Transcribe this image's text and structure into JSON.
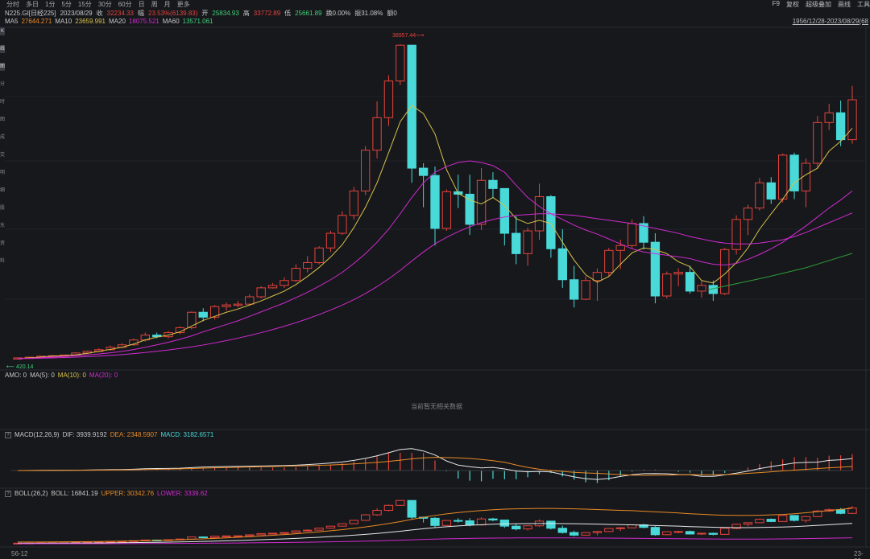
{
  "toolbar": {
    "periods": [
      "分时",
      "多日",
      "1分",
      "5分",
      "15分",
      "30分",
      "60分",
      "日",
      "周",
      "月",
      "更多"
    ],
    "right": [
      "F9",
      "复权",
      "超级叠加",
      "画线",
      "工具"
    ]
  },
  "quote": {
    "symbol": "N225.GI[日经225]",
    "date": "2023/08/29",
    "close_label": "收",
    "close": "32234.33",
    "change_label": "幅",
    "change": "23.53%(6139.83)",
    "open_label": "开",
    "open": "25834.93",
    "high_label": "高",
    "high": "33772.89",
    "low_label": "低",
    "low": "25661.89",
    "turnover": "换0.00%",
    "amplitude": "振31.08%",
    "amount": "额0"
  },
  "ma": {
    "ma5_label": "MA5",
    "ma5": "27644.271",
    "ma10_label": "MA10",
    "ma10": "23659.991",
    "ma20_label": "MA20",
    "ma20": "18075.521",
    "ma60_label": "MA60",
    "ma60": "13571.061"
  },
  "range_text": "1956/12/28-2023/08/29(68",
  "left_tabs": [
    "K",
    "线",
    "图",
    "分",
    "时",
    "图",
    "成",
    "交",
    "明",
    "细",
    "股",
    "东",
    "资",
    "料"
  ],
  "peak_label": "38957.44",
  "low_label": "420.14",
  "amo": {
    "label": "AMO: 0",
    "ma5": "MA(5): 0",
    "ma10": "MA(10): 0",
    "ma20": "MA(20): 0",
    "nodata": "当前暂无相关数据"
  },
  "macd": {
    "q": "?",
    "label": "MACD(12,26,9)",
    "dif": "DIF: 3939.9192",
    "dea": "DEA: 2348.5907",
    "macd": "MACD: 3182.6571"
  },
  "boll": {
    "q": "?",
    "label": "BOLL(26,2)",
    "boll": "BOLL: 16841.19",
    "upper": "UPPER: 30342.76",
    "lower": "LOWER: 3339.62"
  },
  "xaxis": {
    "start": "56-12",
    "end": "23-08"
  },
  "colors": {
    "up": "#e5433b",
    "down": "#49d9d9",
    "ma5": "#c8c8c8",
    "ma10": "#d8c24a",
    "ma20": "#d02ad0",
    "ma60": "#2e9a3a",
    "dea": "#e98a24",
    "bg": "#17181c"
  },
  "chart_data": {
    "type": "candlestick",
    "candles": [
      [
        420,
        520,
        500,
        380
      ],
      [
        500,
        600,
        580,
        470
      ],
      [
        580,
        720,
        700,
        560
      ],
      [
        700,
        860,
        760,
        660
      ],
      [
        760,
        900,
        850,
        700
      ],
      [
        850,
        1200,
        1100,
        800
      ],
      [
        1100,
        1400,
        1300,
        1000
      ],
      [
        1300,
        1700,
        1500,
        1200
      ],
      [
        1500,
        2000,
        1800,
        1400
      ],
      [
        1800,
        2300,
        2100,
        1700
      ],
      [
        2100,
        2900,
        2700,
        2000
      ],
      [
        2700,
        3600,
        3300,
        2500
      ],
      [
        3300,
        3600,
        3100,
        2900
      ],
      [
        3100,
        3800,
        3600,
        2900
      ],
      [
        3600,
        4400,
        4200,
        3400
      ],
      [
        4200,
        6200,
        6100,
        4000
      ],
      [
        6100,
        6600,
        5500,
        5000
      ],
      [
        5500,
        7000,
        6800,
        5200
      ],
      [
        6800,
        7300,
        7000,
        6300
      ],
      [
        7000,
        7500,
        7100,
        6700
      ],
      [
        7100,
        8300,
        8000,
        6900
      ],
      [
        8000,
        9300,
        9100,
        7800
      ],
      [
        9100,
        9700,
        9400,
        9000
      ],
      [
        9400,
        10400,
        10000,
        9100
      ],
      [
        10000,
        12000,
        11500,
        9800
      ],
      [
        11500,
        13000,
        12200,
        11000
      ],
      [
        12200,
        14200,
        14000,
        12000
      ],
      [
        14000,
        16100,
        15800,
        13500
      ],
      [
        15800,
        18500,
        18000,
        15600
      ],
      [
        18000,
        21500,
        21000,
        17500
      ],
      [
        21000,
        26500,
        26000,
        20500
      ],
      [
        26000,
        32000,
        30000,
        25000
      ],
      [
        30000,
        35200,
        34500,
        29000
      ],
      [
        34500,
        39000,
        38900,
        34000
      ],
      [
        38900,
        38957,
        23800,
        22000
      ],
      [
        23800,
        24400,
        22900,
        19000
      ],
      [
        22900,
        24000,
        16400,
        14300
      ],
      [
        16400,
        21200,
        20900,
        16100
      ],
      [
        20900,
        23000,
        20600,
        18900
      ],
      [
        20600,
        23000,
        16900,
        15600
      ],
      [
        16900,
        23800,
        22300,
        16200
      ],
      [
        22300,
        23300,
        21300,
        20100
      ],
      [
        21300,
        20600,
        15800,
        14300
      ],
      [
        15800,
        17900,
        13300,
        12000
      ],
      [
        13300,
        16500,
        16100,
        11800
      ],
      [
        16100,
        21900,
        20300,
        15000
      ],
      [
        20300,
        20500,
        13900,
        12800
      ],
      [
        13900,
        16300,
        10100,
        9100
      ],
      [
        10100,
        11800,
        7700,
        6700
      ],
      [
        7700,
        10500,
        10000,
        7600
      ],
      [
        10000,
        11500,
        11000,
        7500
      ],
      [
        11000,
        14000,
        13700,
        10500
      ],
      [
        13700,
        15000,
        14300,
        11400
      ],
      [
        14300,
        17500,
        17000,
        14000
      ],
      [
        17000,
        17900,
        14700,
        13800
      ],
      [
        14700,
        15800,
        8100,
        7200
      ],
      [
        8100,
        11100,
        10800,
        7800
      ],
      [
        10800,
        11500,
        11000,
        9300
      ],
      [
        11000,
        11800,
        8700,
        8400
      ],
      [
        8700,
        9900,
        9400,
        7900
      ],
      [
        9400,
        10000,
        8400,
        7500
      ],
      [
        8400,
        14000,
        13800,
        8200
      ],
      [
        13800,
        18000,
        17500,
        13200
      ],
      [
        17500,
        19300,
        18900,
        15600
      ],
      [
        18900,
        22600,
        22000,
        18600
      ],
      [
        22000,
        22700,
        20000,
        19400
      ],
      [
        20000,
        25600,
        25400,
        19600
      ],
      [
        25400,
        25700,
        21000,
        20000
      ],
      [
        21000,
        25000,
        24400,
        19000
      ],
      [
        24400,
        30200,
        29400,
        23800
      ],
      [
        29400,
        31700,
        30600,
        28500
      ],
      [
        30600,
        32100,
        27300,
        26500
      ],
      [
        27300,
        33900,
        32200,
        26800
      ]
    ],
    "ma5": [
      420,
      500,
      600,
      720,
      760,
      880,
      1050,
      1300,
      1550,
      1800,
      2200,
      2700,
      3050,
      3300,
      3700,
      4400,
      5100,
      5600,
      6100,
      6500,
      7000,
      7500,
      8100,
      8700,
      9500,
      10500,
      11600,
      12900,
      14400,
      16500,
      19000,
      22000,
      25700,
      29500,
      31500,
      30500,
      28000,
      23600,
      20700,
      19900,
      19400,
      20200,
      19200,
      17600,
      17000,
      17400,
      17000,
      14700,
      12500,
      10700,
      9800,
      10500,
      12000,
      13400,
      14000,
      13800,
      13300,
      12300,
      11700,
      10000,
      9700,
      10800,
      12200,
      14000,
      16300,
      18200,
      20000,
      22000,
      23000,
      23800,
      25900,
      27100,
      28700
    ],
    "ma10": [
      420,
      450,
      520,
      600,
      680,
      760,
      860,
      980,
      1120,
      1300,
      1520,
      1800,
      2100,
      2420,
      2780,
      3200,
      3700,
      4150,
      4600,
      5050,
      5600,
      6150,
      6700,
      7250,
      7900,
      8550,
      9300,
      10100,
      11000,
      12100,
      13300,
      14700,
      16300,
      18200,
      20200,
      22000,
      23300,
      24000,
      24500,
      24700,
      24500,
      24100,
      23300,
      21700,
      20200,
      19100,
      18200,
      17500,
      16800,
      16200,
      15700,
      15100,
      14500,
      13900,
      13500,
      13300,
      13100,
      12900,
      12700,
      12300,
      12000,
      11900,
      12100,
      12600,
      13200,
      13900,
      14700,
      15700,
      16700,
      17800,
      18900,
      19900,
      21000
    ],
    "ma20": [
      420,
      430,
      460,
      500,
      540,
      590,
      650,
      720,
      800,
      900,
      1020,
      1160,
      1310,
      1470,
      1650,
      1850,
      2080,
      2340,
      2620,
      2920,
      3250,
      3600,
      3980,
      4380,
      4820,
      5300,
      5820,
      6380,
      6980,
      7650,
      8400,
      9250,
      10200,
      11250,
      12400,
      13500,
      14500,
      15300,
      16000,
      16600,
      17100,
      17500,
      17800,
      18000,
      18100,
      18200,
      18200,
      18100,
      18000,
      17800,
      17600,
      17400,
      17200,
      17000,
      16700,
      16400,
      16100,
      15800,
      15400,
      15100,
      14800,
      14600,
      14500,
      14500,
      14600,
      14800,
      15000,
      15400,
      15900,
      16500,
      17100,
      17700,
      18300
    ]
  }
}
